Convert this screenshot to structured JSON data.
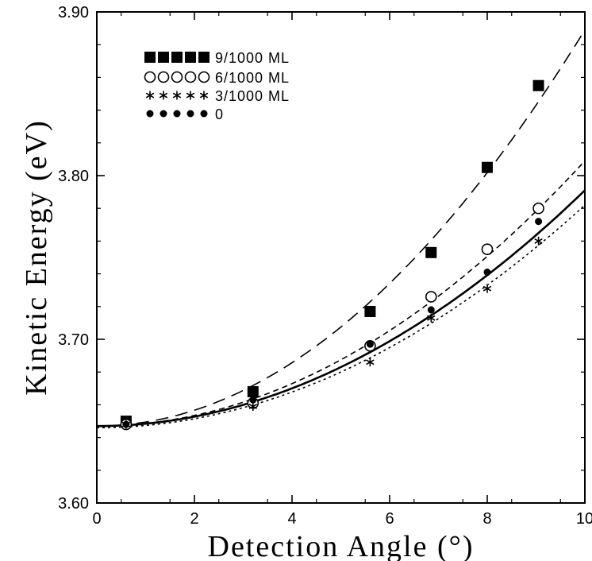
{
  "chart_data": {
    "type": "scatter",
    "title": "",
    "xlabel": "Detection Angle (°)",
    "ylabel": "Kinetic Energy (eV)",
    "xlim": [
      0,
      10
    ],
    "ylim": [
      3.6,
      3.9
    ],
    "x_ticks": [
      0,
      2,
      4,
      6,
      8,
      10
    ],
    "y_ticks": [
      3.6,
      3.7,
      3.8,
      3.9
    ],
    "x_tick_labels": [
      "0",
      "2",
      "4",
      "6",
      "8",
      "10"
    ],
    "y_tick_labels": [
      "3.60",
      "3.70",
      "3.80",
      "3.90"
    ],
    "grid": false,
    "legend_position": "top-left",
    "series": [
      {
        "name": "9/1000 ML",
        "marker": "filled-square",
        "x": [
          0.6,
          3.2,
          5.6,
          6.85,
          8.0,
          9.05
        ],
        "y": [
          3.65,
          3.668,
          3.717,
          3.753,
          3.805,
          3.855
        ],
        "fit": {
          "style": "long-dash",
          "a": 3.647,
          "b": 0.00242,
          "x_range": [
            0,
            10
          ]
        }
      },
      {
        "name": "6/1000 ML",
        "marker": "open-circle",
        "x": [
          0.6,
          3.2,
          5.6,
          6.85,
          8.0,
          9.05
        ],
        "y": [
          3.648,
          3.661,
          3.696,
          3.726,
          3.755,
          3.78
        ],
        "fit": {
          "style": "short-dash",
          "a": 3.647,
          "b": 0.00162,
          "x_range": [
            0,
            10
          ]
        }
      },
      {
        "name": "3/1000 ML",
        "marker": "star",
        "x": [
          0.6,
          3.2,
          5.6,
          6.85,
          8.0,
          9.05
        ],
        "y": [
          3.648,
          3.659,
          3.686,
          3.713,
          3.731,
          3.76
        ],
        "fit": {
          "style": "dotted",
          "a": 3.646,
          "b": 0.00136,
          "x_range": [
            0,
            10
          ]
        }
      },
      {
        "name": "0",
        "marker": "filled-circle",
        "x": [
          0.6,
          3.2,
          5.6,
          6.85,
          8.0,
          9.05
        ],
        "y": [
          3.648,
          3.663,
          3.697,
          3.718,
          3.741,
          3.772
        ],
        "fit": {
          "style": "solid",
          "a": 3.647,
          "b": 0.00144,
          "x_range": [
            0,
            10
          ]
        }
      }
    ]
  }
}
